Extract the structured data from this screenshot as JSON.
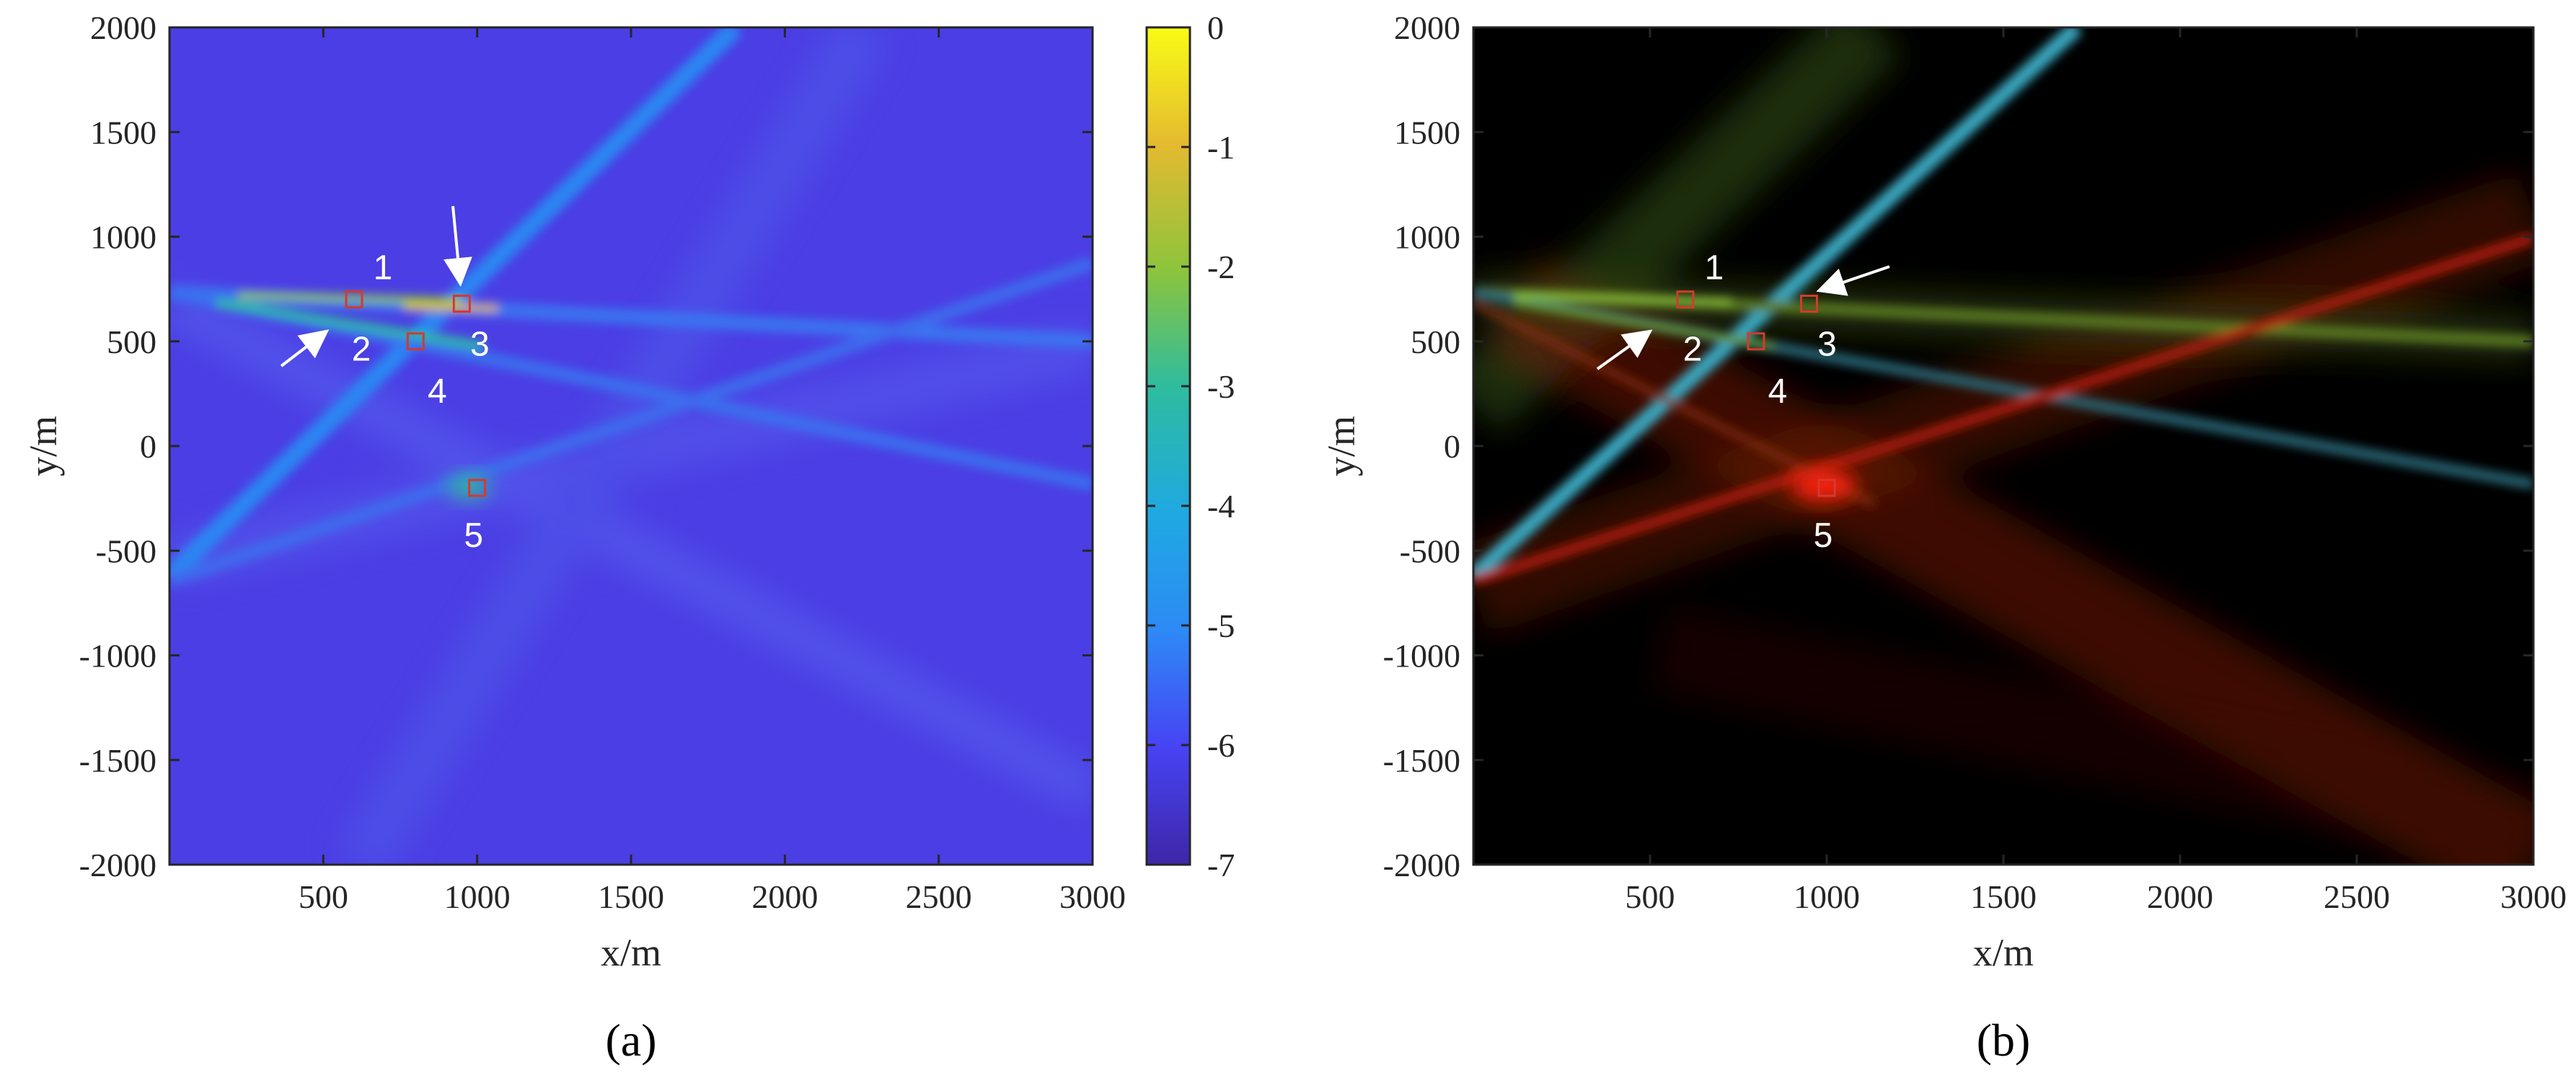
{
  "chart_data": [
    {
      "type": "heatmap",
      "panel_label": "(a)",
      "panel_letter": "a",
      "xlabel": "x/m",
      "ylabel": "y/m",
      "xlim": [
        0,
        3000
      ],
      "ylim": [
        -2000,
        2000
      ],
      "xticks": [
        "500",
        "1000",
        "1500",
        "2000",
        "2500",
        "3000"
      ],
      "yticks": [
        "2000",
        "1500",
        "1000",
        "500",
        "0",
        "-500",
        "-1000",
        "-1500",
        "-2000"
      ],
      "colorbar": {
        "range": [
          -7,
          0
        ],
        "ticks": [
          "0",
          "-1",
          "-2",
          "-3",
          "-4",
          "-5",
          "-6",
          "-7"
        ],
        "colormap": [
          "#3e26a8",
          "#4743f4",
          "#2d8af6",
          "#1fa9e1",
          "#2ebc9f",
          "#8cc43c",
          "#e4ba30",
          "#f9fb15"
        ]
      },
      "markers": [
        {
          "label": "1",
          "x": 600,
          "y": 700
        },
        {
          "label": "2",
          "x": 600,
          "y": 700
        },
        {
          "label": "3",
          "x": 950,
          "y": 680
        },
        {
          "label": "4",
          "x": 800,
          "y": 500
        },
        {
          "label": "5",
          "x": 1000,
          "y": -200
        }
      ],
      "colors": {
        "background": "#4b3ee4",
        "marker": "#d33a2c",
        "label": "#ffffff"
      }
    },
    {
      "type": "heatmap",
      "panel_label": "(b)",
      "panel_letter": "b",
      "xlabel": "x/m",
      "ylabel": "y/m",
      "xlim": [
        0,
        3000
      ],
      "ylim": [
        -2000,
        2000
      ],
      "xticks": [
        "500",
        "1000",
        "1500",
        "2000",
        "2500",
        "3000"
      ],
      "yticks": [
        "2000",
        "1500",
        "1000",
        "500",
        "0",
        "-500",
        "-1000",
        "-1500",
        "-2000"
      ],
      "markers": [
        {
          "label": "1",
          "x": 600,
          "y": 700
        },
        {
          "label": "2",
          "x": 600,
          "y": 700
        },
        {
          "label": "3",
          "x": 950,
          "y": 680
        },
        {
          "label": "4",
          "x": 800,
          "y": 500
        },
        {
          "label": "5",
          "x": 1000,
          "y": -200
        }
      ],
      "colors": {
        "background": "#000000",
        "green": "#6e9a2a",
        "cyan": "#3aa7c0",
        "red": "#d02010",
        "marker": "#d33a2c",
        "label": "#ffffff"
      }
    }
  ]
}
